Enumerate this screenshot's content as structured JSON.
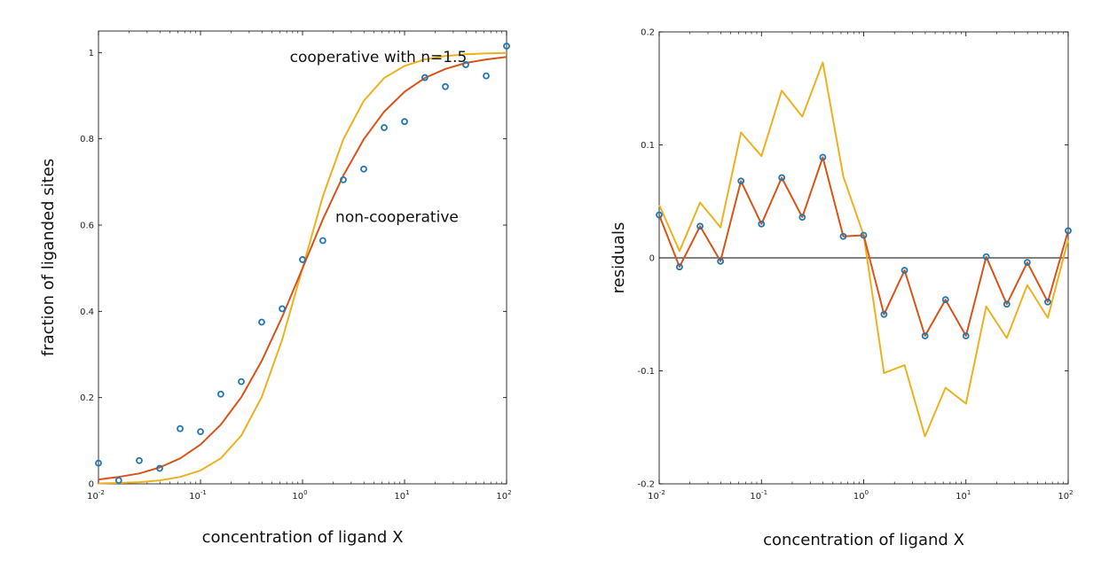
{
  "colors": {
    "data_points": "#1f77b4",
    "fit_noncooperative": "#d95319",
    "fit_cooperative": "#edb120",
    "zero_line": "#000000",
    "axes": "#000000"
  },
  "chart_data": [
    {
      "type": "scatter",
      "xscale": "log",
      "xlim": [
        0.01,
        100
      ],
      "ylim": [
        0,
        1.05
      ],
      "xlabel": "concentration of ligand X",
      "ylabel": "fraction of liganded sites",
      "xticks": [
        0.01,
        0.1,
        1,
        10,
        100
      ],
      "xtick_labels": [
        {
          "base": "10",
          "exp": "-2"
        },
        {
          "base": "10",
          "exp": "-1"
        },
        {
          "base": "10",
          "exp": "0"
        },
        {
          "base": "10",
          "exp": "1"
        },
        {
          "base": "10",
          "exp": "2"
        }
      ],
      "yticks": [
        0,
        0.2,
        0.4,
        0.6,
        0.8,
        1
      ],
      "ytick_labels": [
        "0",
        "0.2",
        "0.4",
        "0.6",
        "0.8",
        "1"
      ],
      "grid": false,
      "annotations": [
        {
          "text": "cooperative with n=1.5",
          "x": 0.75,
          "y": 0.99
        },
        {
          "text": "non-cooperative",
          "x": 2.1,
          "y": 0.62
        }
      ],
      "series": [
        {
          "kind": "points",
          "x": [
            0.01,
            0.0158,
            0.0251,
            0.0398,
            0.0631,
            0.1,
            0.158,
            0.251,
            0.398,
            0.631,
            1,
            1.58,
            2.51,
            3.98,
            6.31,
            10,
            15.8,
            25.1,
            39.8,
            63.1,
            100
          ],
          "y": [
            0.048,
            0.008,
            0.054,
            0.036,
            0.128,
            0.121,
            0.208,
            0.237,
            0.375,
            0.406,
            0.52,
            0.564,
            0.705,
            0.73,
            0.826,
            0.84,
            0.942,
            0.921,
            0.972,
            0.946,
            1.015
          ]
        },
        {
          "kind": "line",
          "x": [
            0.01,
            0.0158,
            0.0251,
            0.0398,
            0.0631,
            0.1,
            0.158,
            0.251,
            0.398,
            0.631,
            1,
            1.58,
            2.51,
            3.98,
            6.31,
            10,
            15.8,
            25.1,
            39.8,
            63.1,
            100
          ],
          "y": [
            0.01,
            0.016,
            0.024,
            0.038,
            0.059,
            0.091,
            0.137,
            0.201,
            0.285,
            0.387,
            0.5,
            0.613,
            0.715,
            0.799,
            0.863,
            0.909,
            0.941,
            0.962,
            0.976,
            0.984,
            0.99
          ]
        },
        {
          "kind": "line",
          "x": [
            0.01,
            0.0158,
            0.0251,
            0.0398,
            0.0631,
            0.1,
            0.158,
            0.251,
            0.398,
            0.631,
            1,
            1.58,
            2.51,
            3.98,
            6.31,
            10,
            15.8,
            25.1,
            39.8,
            63.1,
            100
          ],
          "y": [
            0.001,
            0.002,
            0.004,
            0.008,
            0.016,
            0.031,
            0.059,
            0.112,
            0.201,
            0.334,
            0.5,
            0.666,
            0.799,
            0.888,
            0.941,
            0.969,
            0.984,
            0.992,
            0.996,
            0.998,
            0.999
          ]
        }
      ]
    },
    {
      "type": "line",
      "xscale": "log",
      "xlim": [
        0.01,
        100
      ],
      "ylim": [
        -0.2,
        0.2
      ],
      "xlabel": "concentration of ligand X",
      "ylabel": "residuals",
      "xticks": [
        0.01,
        0.1,
        1,
        10,
        100
      ],
      "xtick_labels": [
        {
          "base": "10",
          "exp": "-2"
        },
        {
          "base": "10",
          "exp": "-1"
        },
        {
          "base": "10",
          "exp": "0"
        },
        {
          "base": "10",
          "exp": "1"
        },
        {
          "base": "10",
          "exp": "2"
        }
      ],
      "yticks": [
        -0.2,
        -0.1,
        0,
        0.1,
        0.2
      ],
      "ytick_labels": [
        "-0.2",
        "-0.1",
        "0",
        "0.1",
        "0.2"
      ],
      "grid": false,
      "zero_line": true,
      "series": [
        {
          "kind": "points",
          "x": [
            0.01,
            0.0158,
            0.0251,
            0.0398,
            0.0631,
            0.1,
            0.158,
            0.251,
            0.398,
            0.631,
            1,
            1.58,
            2.51,
            3.98,
            6.31,
            10,
            15.8,
            25.1,
            39.8,
            63.1,
            100
          ],
          "y": [
            0.038,
            -0.008,
            0.028,
            -0.003,
            0.068,
            0.03,
            0.071,
            0.036,
            0.089,
            0.019,
            0.02,
            -0.05,
            -0.011,
            -0.069,
            -0.037,
            -0.069,
            0.001,
            -0.041,
            -0.004,
            -0.039,
            0.024
          ]
        },
        {
          "kind": "line",
          "x": [
            0.01,
            0.0158,
            0.0251,
            0.0398,
            0.0631,
            0.1,
            0.158,
            0.251,
            0.398,
            0.631,
            1,
            1.58,
            2.51,
            3.98,
            6.31,
            10,
            15.8,
            25.1,
            39.8,
            63.1,
            100
          ],
          "y": [
            0.038,
            -0.008,
            0.028,
            -0.003,
            0.068,
            0.03,
            0.071,
            0.036,
            0.089,
            0.019,
            0.02,
            -0.05,
            -0.011,
            -0.069,
            -0.037,
            -0.069,
            0.001,
            -0.041,
            -0.004,
            -0.039,
            0.024
          ]
        },
        {
          "kind": "line",
          "x": [
            0.01,
            0.0158,
            0.0251,
            0.0398,
            0.0631,
            0.1,
            0.158,
            0.251,
            0.398,
            0.631,
            1,
            1.58,
            2.51,
            3.98,
            6.31,
            10,
            15.8,
            25.1,
            39.8,
            63.1,
            100
          ],
          "y": [
            0.047,
            0.006,
            0.049,
            0.027,
            0.111,
            0.09,
            0.148,
            0.125,
            0.173,
            0.072,
            0.02,
            -0.102,
            -0.095,
            -0.158,
            -0.115,
            -0.129,
            -0.043,
            -0.071,
            -0.024,
            -0.053,
            0.016
          ]
        }
      ]
    }
  ]
}
